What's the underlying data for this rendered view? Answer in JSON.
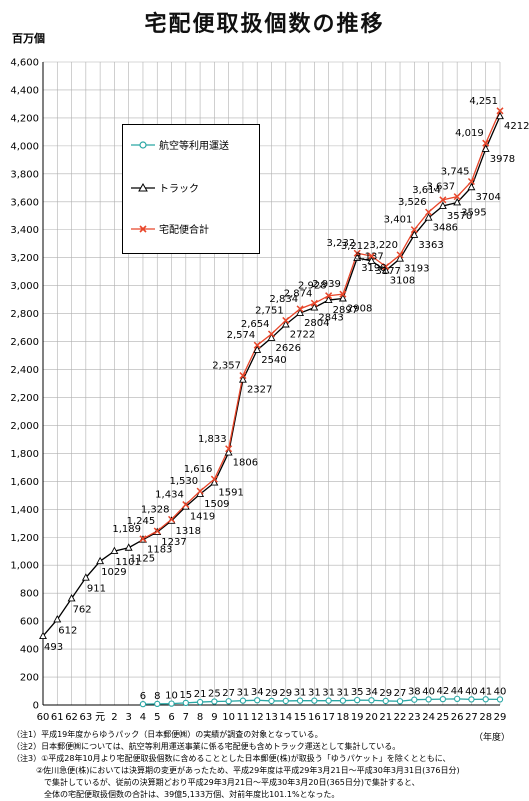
{
  "title": "宅配便取扱個数の推移",
  "unit_label": "百万個",
  "year_unit_label": "（年度）",
  "colors": {
    "air": "#2aa7a5",
    "truck": "#000000",
    "total": "#e8462a",
    "grid": "#b0b0b0"
  },
  "legend": {
    "air": "航空等利用運送",
    "truck": "トラック",
    "total": "宅配便合計"
  },
  "notes": [
    "（注1）平成19年度からゆうパック（日本郵便㈱）の実績が調査の対象となっている。",
    "（注2）日本郵便㈱については、航空等利用運送事業に係る宅配便も含めトラック運送として集計している。",
    "（注3）①平成28年10月より宅配便取扱個数に含めることとした日本郵便(株)が取扱う「ゆうパケット」を除くとともに、",
    "　　　②佐川急便(株)においては決算期の変更があったため、平成29年度は平成29年3月21日～平成30年3月31日(376日分)",
    "　　　　で集計しているが、従前の決算期どおり平成29年3月21日～平成30年3月20日(365日分)で集計すると、",
    "　　　　全体の宅配便取扱個数の合計は、39億5,133万個、対前年度比101.1%となった。"
  ],
  "chart_data": {
    "type": "line",
    "title": "宅配便取扱個数の推移",
    "ylabel": "百万個",
    "xlabel": "（年度）",
    "ylim": [
      0,
      4600
    ],
    "ytick_step": 200,
    "grid": true,
    "legend_position": "top-left",
    "categories": [
      "60",
      "61",
      "62",
      "63",
      "元",
      "2",
      "3",
      "4",
      "5",
      "6",
      "7",
      "8",
      "9",
      "10",
      "11",
      "12",
      "13",
      "14",
      "15",
      "16",
      "17",
      "18",
      "19",
      "20",
      "21",
      "22",
      "23",
      "24",
      "25",
      "26",
      "27",
      "28",
      "29"
    ],
    "series": [
      {
        "name": "航空等利用運送",
        "values": [
          null,
          null,
          null,
          null,
          null,
          null,
          null,
          6,
          8,
          10,
          15,
          21,
          25,
          27,
          31,
          34,
          29,
          29,
          31,
          31,
          31,
          31,
          35,
          34,
          29,
          27,
          38,
          40,
          42,
          44,
          40,
          41,
          40
        ]
      },
      {
        "name": "トラック",
        "values": [
          493,
          612,
          762,
          911,
          1029,
          1101,
          1125,
          1183,
          1237,
          1318,
          1419,
          1509,
          1591,
          1806,
          2327,
          2540,
          2626,
          2722,
          2804,
          2843,
          2897,
          2908,
          3198,
          3177,
          3108,
          3193,
          3363,
          3486,
          3570,
          3595,
          3704,
          3978,
          4212
        ]
      },
      {
        "name": "宅配便合計",
        "values": [
          null,
          null,
          null,
          null,
          null,
          null,
          null,
          1189,
          1245,
          1328,
          1434,
          1530,
          1616,
          1833,
          2357,
          2574,
          2654,
          2751,
          2834,
          2874,
          2928,
          2939,
          3232,
          3212,
          3137,
          3220,
          3401,
          3526,
          3614,
          3637,
          3745,
          4019,
          4251
        ]
      }
    ]
  }
}
